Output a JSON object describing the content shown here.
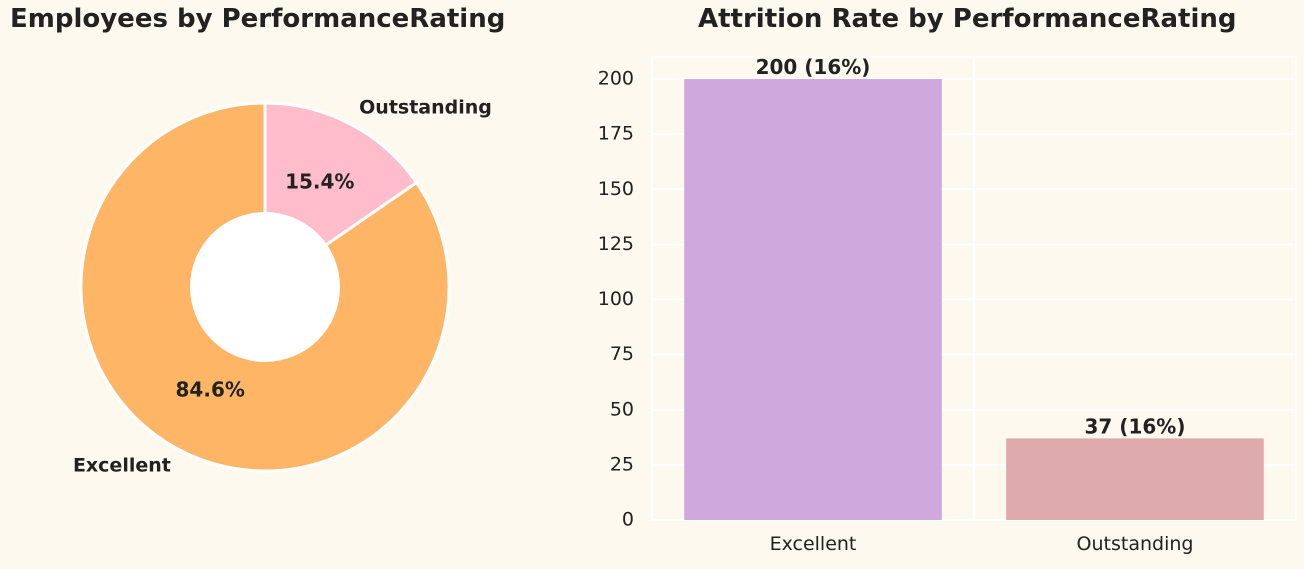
{
  "colors": {
    "background": "#fef9ee",
    "axes_bg": "#fef9ee",
    "grid": "#ffffff",
    "text": "#222222"
  },
  "chart_data": [
    {
      "type": "pie",
      "title": "Employees by PerformanceRating",
      "donut": true,
      "start_angle_deg": 90,
      "direction": "clockwise",
      "slices": [
        {
          "label": "Outstanding",
          "value": 15.4,
          "pct_label": "15.4%",
          "color": "#ffbccb"
        },
        {
          "label": "Excellent",
          "value": 84.6,
          "pct_label": "84.6%",
          "color": "#ffb566"
        }
      ]
    },
    {
      "type": "bar",
      "title": "Attrition Rate by PerformanceRating",
      "categories": [
        "Excellent",
        "Outstanding"
      ],
      "values": [
        200,
        37
      ],
      "bar_labels": [
        "200 (16%)",
        "37 (16%)"
      ],
      "colors": [
        "#cfa8de",
        "#dea9aa"
      ],
      "ylim": [
        0,
        210
      ],
      "yticks": [
        0,
        25,
        50,
        75,
        100,
        125,
        150,
        175,
        200
      ],
      "xlabel": "",
      "ylabel": "",
      "grid": true
    }
  ]
}
